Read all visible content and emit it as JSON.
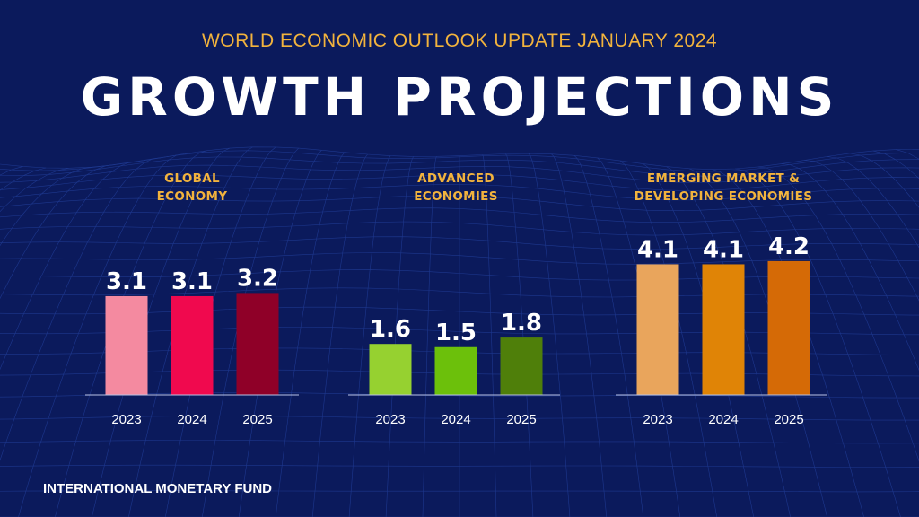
{
  "header": {
    "subtitle": "WORLD ECONOMIC OUTLOOK UPDATE JANUARY 2024",
    "title": "GROWTH PROJECTIONS"
  },
  "footer": {
    "source": "INTERNATIONAL MONETARY FUND"
  },
  "colors": {
    "background": "#0b1a5c",
    "accent": "#f2b33d",
    "text": "#ffffff"
  },
  "chart_data": [
    {
      "type": "bar",
      "title": [
        "GLOBAL",
        "ECONOMY"
      ],
      "categories": [
        "2023",
        "2024",
        "2025"
      ],
      "values": [
        3.1,
        3.1,
        3.2
      ],
      "value_labels": [
        "3.1",
        "3.1",
        "3.2"
      ],
      "colors": [
        "#f48aa0",
        "#f0094e",
        "#8f0028"
      ],
      "ylim": [
        0,
        4.2
      ]
    },
    {
      "type": "bar",
      "title": [
        "ADVANCED",
        "ECONOMIES"
      ],
      "categories": [
        "2023",
        "2024",
        "2025"
      ],
      "values": [
        1.6,
        1.5,
        1.8
      ],
      "value_labels": [
        "1.6",
        "1.5",
        "1.8"
      ],
      "colors": [
        "#96d130",
        "#6cc00b",
        "#4f7f0a"
      ],
      "ylim": [
        0,
        4.2
      ]
    },
    {
      "type": "bar",
      "title": [
        "EMERGING MARKET &",
        "DEVELOPING ECONOMIES"
      ],
      "categories": [
        "2023",
        "2024",
        "2025"
      ],
      "values": [
        4.1,
        4.1,
        4.2
      ],
      "value_labels": [
        "4.1",
        "4.1",
        "4.2"
      ],
      "colors": [
        "#e9a55c",
        "#e08406",
        "#d56a06"
      ],
      "ylim": [
        0,
        4.2
      ]
    }
  ]
}
